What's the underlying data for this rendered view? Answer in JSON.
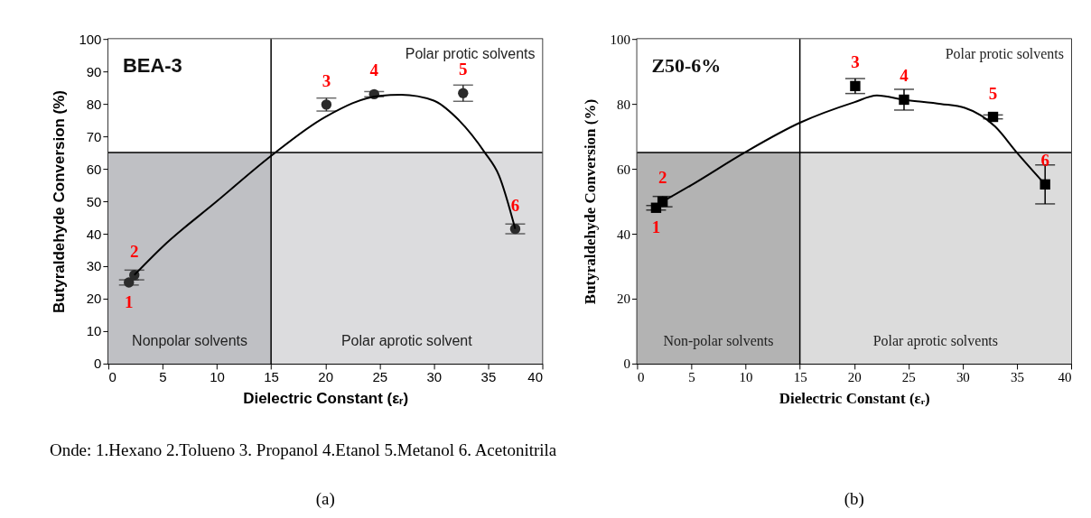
{
  "chart_data": [
    {
      "type": "scatter",
      "title": "BEA-3",
      "xlabel": "Dielectric Constant (εᵣ)",
      "ylabel": "Butyraldehyde Conversion (%)",
      "xlim": [
        0,
        40
      ],
      "xticks": [
        0,
        5,
        10,
        15,
        20,
        25,
        30,
        35,
        40
      ],
      "ylim": [
        0,
        100
      ],
      "yticks": [
        0,
        10,
        20,
        30,
        40,
        50,
        60,
        70,
        80,
        90,
        100
      ],
      "grid": false,
      "series": [
        {
          "color": "#2b2b2b",
          "marker": "circle",
          "x": [
            1.9,
            2.4,
            20.1,
            24.5,
            32.7,
            37.5
          ],
          "values": [
            25,
            27.3,
            79.8,
            83,
            83.3,
            41.5
          ],
          "errors": [
            0.8,
            1.5,
            2,
            0.8,
            2.5,
            1.5
          ]
        },
        {
          "type": "line",
          "color": "#000000",
          "line_style": "solid",
          "x": [
            2.4,
            5,
            10,
            15,
            20,
            25,
            27,
            30,
            32,
            34.7,
            36,
            37.5
          ],
          "values": [
            27.3,
            36,
            50,
            64,
            76,
            82.5,
            82.8,
            81,
            76,
            65,
            58,
            41.5
          ]
        }
      ],
      "ref_lines": [
        {
          "axis": "x",
          "value": 15,
          "color": "#000000"
        },
        {
          "axis": "y",
          "value": 65,
          "color": "#000000"
        }
      ],
      "bands": [
        {
          "axis": "x",
          "from": 0,
          "to": 15,
          "label": "Nonpolar solvents",
          "color": "#bfc0c4"
        },
        {
          "axis": "x",
          "from": 15,
          "to": 40,
          "label": "Polar aprotic solvent",
          "color": "#dcdcde"
        },
        {
          "axis": "y",
          "from": 65,
          "to": 100,
          "label": "Polar protic solvents",
          "color": "#ffffff"
        }
      ],
      "annotations": [
        {
          "text": "1",
          "x": 1.9,
          "y": 25
        },
        {
          "text": "2",
          "x": 2.4,
          "y": 27.3
        },
        {
          "text": "3",
          "x": 20.1,
          "y": 79.8
        },
        {
          "text": "4",
          "x": 24.5,
          "y": 83
        },
        {
          "text": "5",
          "x": 32.7,
          "y": 83.3
        },
        {
          "text": "6",
          "x": 37.5,
          "y": 41.5
        },
        "Onde: 1.Hexano 2.Tolueno 3. Propanol 4.Etanol 5.Metanol 6. Acetonitrila",
        "(a)"
      ]
    },
    {
      "type": "scatter",
      "title": "Z50-6%",
      "xlabel": "Dielectric Constant (εᵣ)",
      "ylabel": "Butyraldehyde Conversion (%)",
      "xlim": [
        0,
        40
      ],
      "xticks": [
        0,
        5,
        10,
        15,
        20,
        25,
        30,
        35,
        40
      ],
      "ylim": [
        0,
        100
      ],
      "yticks": [
        0,
        20,
        40,
        60,
        80,
        100
      ],
      "grid": false,
      "series": [
        {
          "color": "#000000",
          "marker": "square",
          "x": [
            1.75,
            2.35,
            20.1,
            24.6,
            32.8,
            37.6
          ],
          "values": [
            48,
            49.9,
            85.5,
            81.3,
            76,
            55.2
          ],
          "errors": [
            0.7,
            1.6,
            2.3,
            3.2,
            0.6,
            6
          ]
        },
        {
          "type": "line",
          "color": "#000000",
          "line_style": "solid",
          "x": [
            2.35,
            5,
            9.9,
            15,
            20,
            22.1,
            24.6,
            28,
            30.2,
            33,
            35,
            37.6
          ],
          "values": [
            49.9,
            55,
            65,
            74.2,
            80.5,
            82.6,
            81.3,
            80,
            78.8,
            73,
            65,
            55.2
          ]
        }
      ],
      "ref_lines": [
        {
          "axis": "x",
          "value": 15,
          "color": "#000000"
        },
        {
          "axis": "y",
          "value": 65,
          "color": "#000000"
        }
      ],
      "bands": [
        {
          "axis": "x",
          "from": 0,
          "to": 15,
          "label": "Non-polar solvents",
          "color": "#b3b3b3"
        },
        {
          "axis": "x",
          "from": 15,
          "to": 40,
          "label": "Polar aprotic solvents",
          "color": "#dcdcdc"
        },
        {
          "axis": "y",
          "from": 65,
          "to": 100,
          "label": "Polar protic solvents",
          "color": "#ffffff"
        }
      ],
      "annotations": [
        {
          "text": "1",
          "x": 1.75,
          "y": 48
        },
        {
          "text": "2",
          "x": 2.35,
          "y": 49.9
        },
        {
          "text": "3",
          "x": 20.1,
          "y": 85.5
        },
        {
          "text": "4",
          "x": 24.6,
          "y": 81.3
        },
        {
          "text": "5",
          "x": 32.8,
          "y": 76
        },
        {
          "text": "6",
          "x": 37.6,
          "y": 55.2
        },
        "(b)"
      ]
    }
  ]
}
